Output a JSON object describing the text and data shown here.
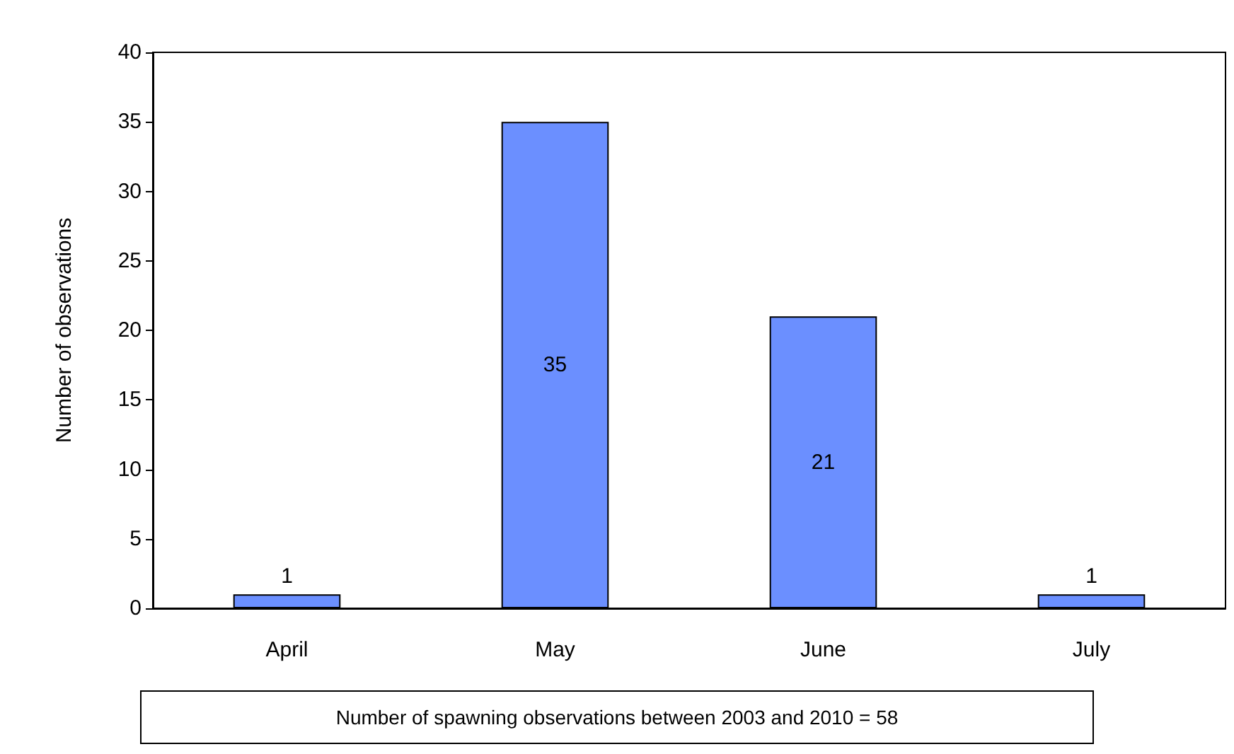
{
  "chart_data": {
    "type": "bar",
    "categories": [
      "April",
      "May",
      "June",
      "July"
    ],
    "values": [
      1,
      35,
      21,
      1
    ],
    "color": "#6b8fff",
    "ylabel": "Number of observations",
    "ylim": [
      0,
      40
    ],
    "yticks": [
      0,
      5,
      10,
      15,
      20,
      25,
      30,
      35,
      40
    ],
    "grid": false,
    "data_labels": true,
    "annotations": [
      "Number of spawning observations between 2003 and 2010 = 58"
    ]
  }
}
